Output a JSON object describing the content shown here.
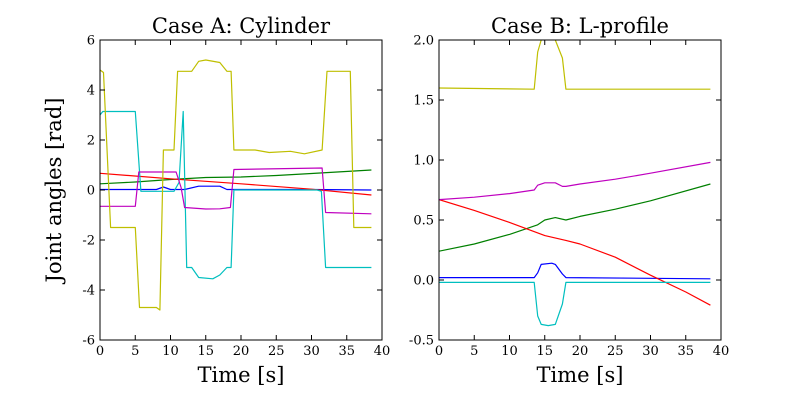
{
  "figure": {
    "ylabel": "Joint angles [rad]"
  },
  "chart_data": [
    {
      "type": "line",
      "title": "Case A: Cylinder",
      "xlabel": "Time [s]",
      "ylabel": "Joint angles [rad]",
      "xlim": [
        0,
        40
      ],
      "ylim": [
        -6,
        6
      ],
      "xticks": [
        0,
        5,
        10,
        15,
        20,
        25,
        30,
        35,
        40
      ],
      "yticks": [
        -6,
        -4,
        -2,
        0,
        2,
        4,
        6
      ],
      "grid": false,
      "series": [
        {
          "color": "#0000ff",
          "x": [
            0,
            8,
            9,
            10,
            12,
            14,
            17,
            18,
            20,
            25,
            30,
            38.5
          ],
          "y": [
            0.02,
            0.02,
            0.12,
            0.02,
            0.02,
            0.15,
            0.15,
            0.02,
            0.02,
            0.02,
            0.02,
            0.0
          ]
        },
        {
          "color": "#008000",
          "x": [
            0,
            5,
            10,
            15,
            20,
            25,
            30,
            38.5
          ],
          "y": [
            0.25,
            0.32,
            0.42,
            0.5,
            0.52,
            0.58,
            0.66,
            0.8
          ]
        },
        {
          "color": "#ff0000",
          "x": [
            0,
            10,
            20,
            30,
            38.5
          ],
          "y": [
            0.67,
            0.45,
            0.25,
            0.03,
            -0.2
          ]
        },
        {
          "color": "#00bfbf",
          "x": [
            0,
            0.4,
            5,
            5.8,
            10.5,
            11.2,
            11.8,
            12.3,
            13,
            14,
            16,
            17,
            18,
            18.6,
            19,
            30.8,
            31.4,
            32,
            38.5
          ],
          "y": [
            3.0,
            3.14,
            3.14,
            -0.05,
            -0.05,
            0.3,
            3.14,
            -3.1,
            -3.1,
            -3.5,
            -3.55,
            -3.4,
            -3.1,
            -3.1,
            0.0,
            0.0,
            -0.05,
            -3.1,
            -3.1
          ]
        },
        {
          "color": "#bf00bf",
          "x": [
            0,
            5,
            5.5,
            10.8,
            11.5,
            12,
            15,
            17,
            18.5,
            19,
            31.5,
            32,
            38.5
          ],
          "y": [
            -0.65,
            -0.65,
            0.72,
            0.72,
            0.1,
            -0.7,
            -0.76,
            -0.75,
            -0.7,
            0.82,
            0.88,
            -0.9,
            -0.95
          ]
        },
        {
          "color": "#bfbf00",
          "x": [
            0,
            0.5,
            1.5,
            5,
            5.6,
            8,
            8.5,
            9,
            10.5,
            11,
            11.5,
            13,
            14,
            15,
            17,
            18,
            18.6,
            19,
            22,
            24,
            27,
            29,
            31.5,
            32.2,
            35.5,
            36,
            38.5
          ],
          "y": [
            4.8,
            4.7,
            -1.5,
            -1.5,
            -4.7,
            -4.7,
            -4.8,
            1.6,
            1.6,
            4.75,
            4.75,
            4.75,
            5.15,
            5.2,
            5.1,
            4.75,
            4.75,
            1.6,
            1.6,
            1.5,
            1.55,
            1.45,
            1.6,
            4.75,
            4.75,
            -1.5,
            -1.5
          ]
        }
      ]
    },
    {
      "type": "line",
      "title": "Case B: L-profile",
      "xlabel": "Time [s]",
      "xlim": [
        0,
        40
      ],
      "ylim": [
        -0.5,
        2.0
      ],
      "xticks": [
        0,
        5,
        10,
        15,
        20,
        25,
        30,
        35,
        40
      ],
      "yticks": [
        -0.5,
        0.0,
        0.5,
        1.0,
        1.5,
        2.0
      ],
      "grid": false,
      "series": [
        {
          "color": "#0000ff",
          "x": [
            0,
            13.5,
            14,
            14.5,
            16,
            16.5,
            17.5,
            18,
            38.5
          ],
          "y": [
            0.02,
            0.02,
            0.06,
            0.13,
            0.14,
            0.13,
            0.05,
            0.02,
            0.01
          ]
        },
        {
          "color": "#008000",
          "x": [
            0,
            5,
            10,
            14,
            15,
            16.5,
            18,
            20,
            25,
            30,
            38.5
          ],
          "y": [
            0.24,
            0.3,
            0.38,
            0.46,
            0.5,
            0.52,
            0.5,
            0.53,
            0.59,
            0.66,
            0.8
          ]
        },
        {
          "color": "#ff0000",
          "x": [
            0,
            5,
            10,
            15,
            18,
            20,
            25,
            30,
            35,
            38.5
          ],
          "y": [
            0.67,
            0.58,
            0.48,
            0.37,
            0.33,
            0.3,
            0.19,
            0.04,
            -0.1,
            -0.21
          ]
        },
        {
          "color": "#00bfbf",
          "x": [
            0,
            13.5,
            14,
            14.5,
            15.5,
            16.5,
            17.5,
            18,
            38.5
          ],
          "y": [
            -0.02,
            -0.02,
            -0.3,
            -0.37,
            -0.38,
            -0.37,
            -0.2,
            -0.02,
            -0.02
          ]
        },
        {
          "color": "#bf00bf",
          "x": [
            0,
            5,
            10,
            13.5,
            14,
            15,
            16.5,
            17.5,
            18,
            20,
            25,
            30,
            38.5
          ],
          "y": [
            0.67,
            0.69,
            0.72,
            0.75,
            0.79,
            0.81,
            0.81,
            0.78,
            0.78,
            0.8,
            0.84,
            0.89,
            0.98
          ]
        },
        {
          "color": "#bfbf00",
          "x": [
            0,
            13.5,
            14,
            14.5,
            15.5,
            16.5,
            17.5,
            18,
            38.5
          ],
          "y": [
            1.6,
            1.59,
            1.9,
            2.0,
            2.05,
            2.0,
            1.85,
            1.59,
            1.59
          ]
        }
      ]
    }
  ]
}
